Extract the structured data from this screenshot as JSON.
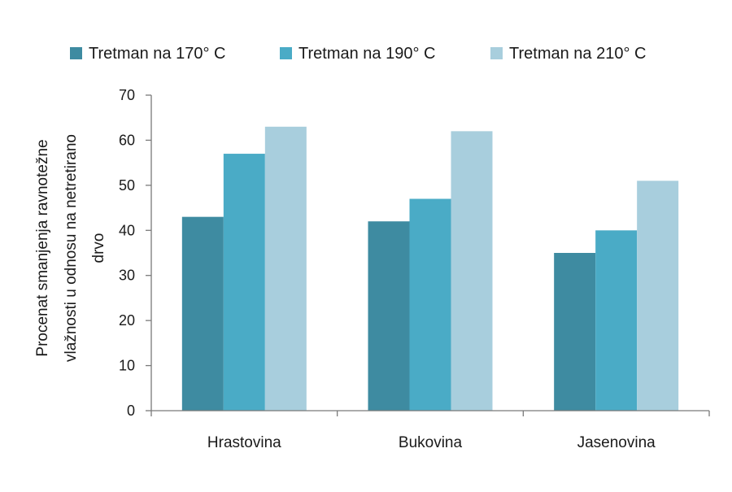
{
  "chart_data": {
    "type": "bar",
    "categories": [
      "Hrastovina",
      "Bukovina",
      "Jasenovina"
    ],
    "series": [
      {
        "name": "Tretman na 170° C",
        "values": [
          43,
          42,
          35
        ],
        "color": "#3e8ba1"
      },
      {
        "name": "Tretman na 190° C",
        "values": [
          57,
          47,
          40
        ],
        "color": "#4aabc6"
      },
      {
        "name": "Tretman na 210° C",
        "values": [
          63,
          62,
          51
        ],
        "color": "#a8cedd"
      }
    ],
    "ylabel_lines": [
      "Procenat smanjenja ravnotežne",
      "vlažnosti u odnosu na netretirano",
      "drvo"
    ],
    "xlabel": "",
    "ylim": [
      0,
      70
    ],
    "yticks": [
      0,
      10,
      20,
      30,
      40,
      50,
      60,
      70
    ],
    "legend_position": "top",
    "grid": false
  }
}
